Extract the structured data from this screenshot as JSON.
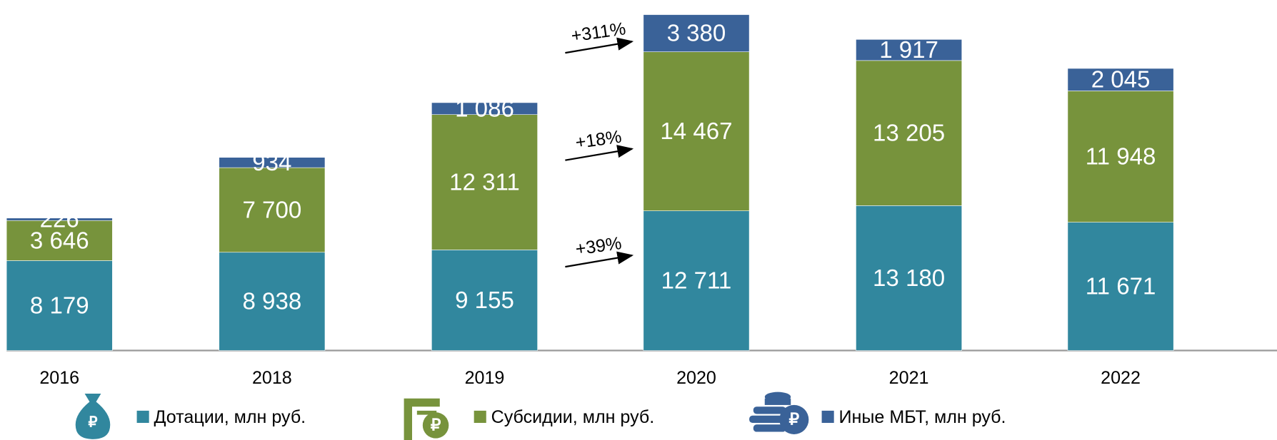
{
  "chart_data": {
    "type": "stacked-bar",
    "categories": [
      "2016",
      "2018",
      "2019",
      "2020",
      "2021",
      "2022"
    ],
    "series": [
      {
        "name": "Дотации, млн руб.",
        "color": "#31879e",
        "values": [
          8179,
          8938,
          9155,
          12711,
          13180,
          11671
        ],
        "value_labels": [
          "8 179",
          "8 938",
          "9 155",
          "12 711",
          "13 180",
          "11 671"
        ]
      },
      {
        "name": "Субсидии, млн руб.",
        "color": "#77933c",
        "values": [
          3646,
          7700,
          12311,
          14467,
          13205,
          11948
        ],
        "value_labels": [
          "3 646",
          "7 700",
          "12 311",
          "14 467",
          "13 205",
          "11 948"
        ]
      },
      {
        "name": "Иные МБТ, млн руб.",
        "color": "#3a6298",
        "values": [
          226,
          934,
          1086,
          3380,
          1917,
          2045
        ],
        "value_labels": [
          "226",
          "934",
          "1 086",
          "3 380",
          "1 917",
          "2 045"
        ]
      }
    ],
    "ylim": [
      0,
      31000
    ],
    "annotations": [
      "+311%",
      "+18%",
      "+39%"
    ]
  }
}
